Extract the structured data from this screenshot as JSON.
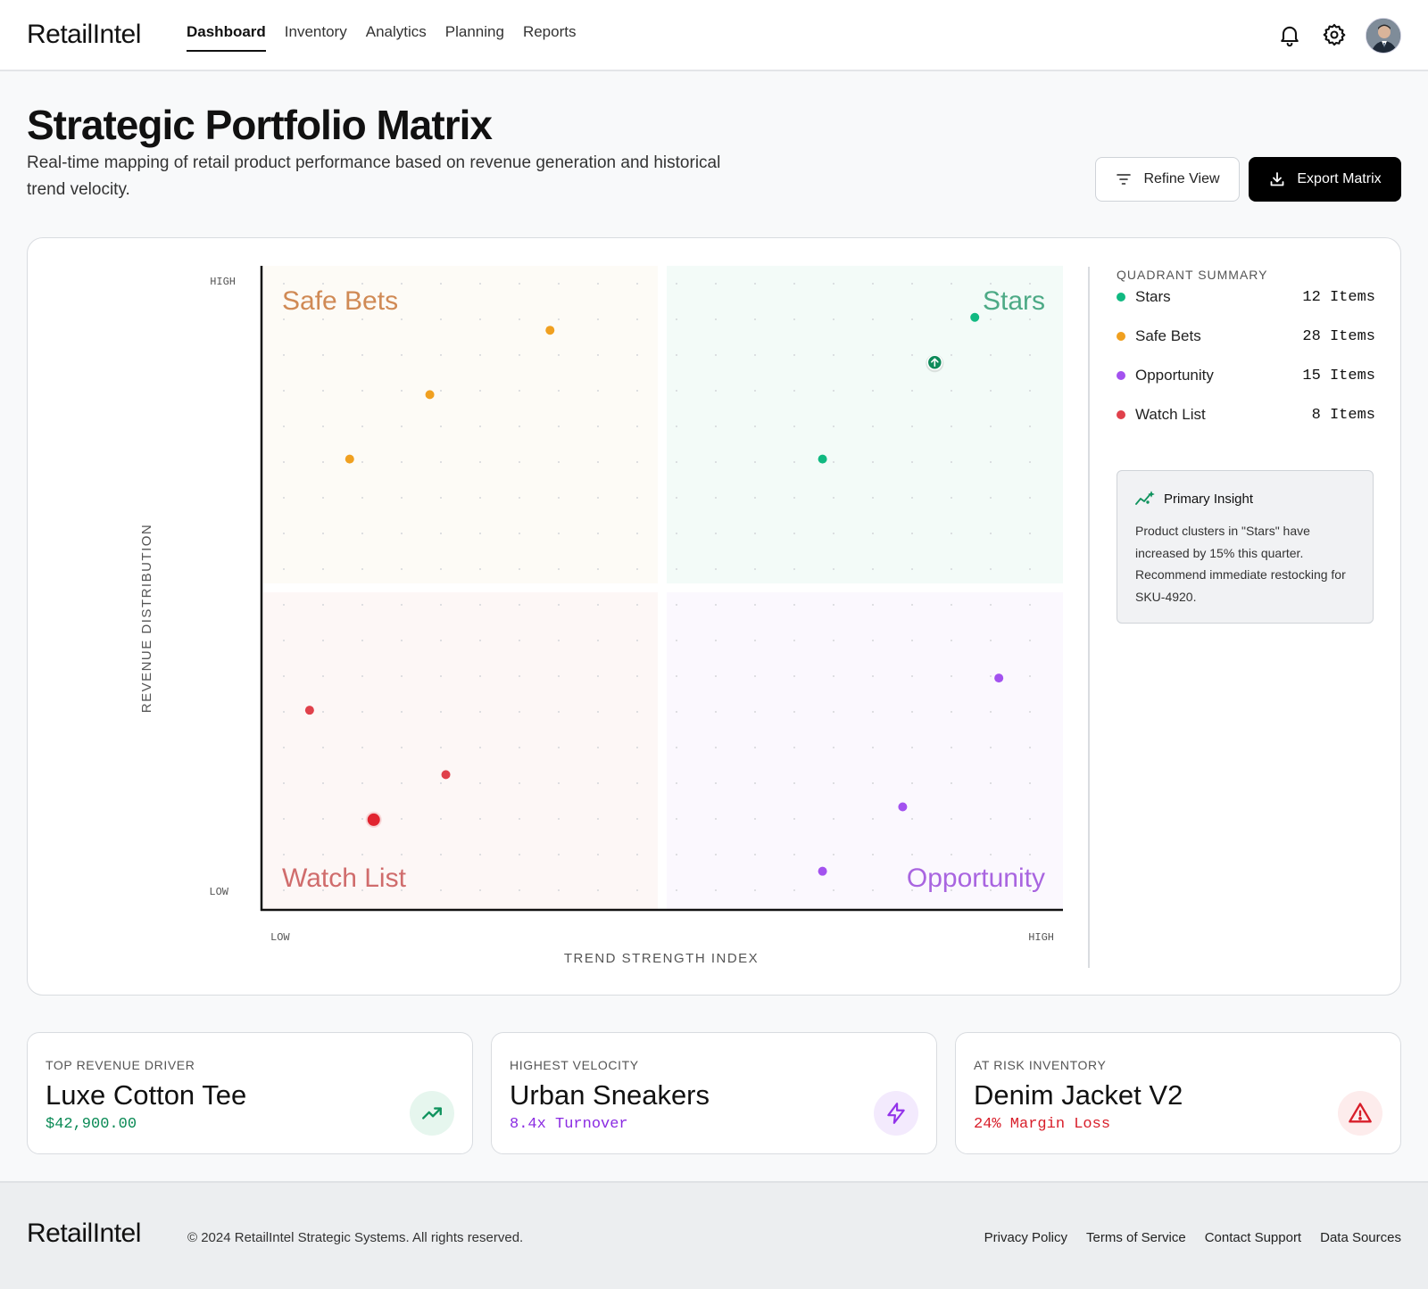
{
  "app": {
    "brand": "RetailIntel"
  },
  "nav": {
    "items": [
      "Dashboard",
      "Inventory",
      "Analytics",
      "Planning",
      "Reports"
    ],
    "active": "Dashboard",
    "icons": [
      "bell-icon",
      "gear-icon"
    ]
  },
  "header": {
    "title": "Strategic Portfolio Matrix",
    "subtitle": "Real-time mapping of retail product performance based on revenue generation and historical trend velocity.",
    "refine_label": "Refine View",
    "export_label": "Export Matrix"
  },
  "chart_data": {
    "type": "scatter",
    "xlabel": "TREND STRENGTH INDEX",
    "ylabel": "REVENUE DISTRIBUTION",
    "x_ticks": [
      "LOW",
      "HIGH"
    ],
    "y_ticks": [
      "HIGH",
      "LOW"
    ],
    "xlim": [
      0,
      100
    ],
    "ylim": [
      0,
      100
    ],
    "grid": "dotted",
    "quadrants": [
      {
        "name": "Safe Bets",
        "position": "top-left",
        "color": "#d08a55",
        "bg": "#fdfbf6"
      },
      {
        "name": "Stars",
        "position": "top-right",
        "color": "#4daa86",
        "bg": "#f3fbf8"
      },
      {
        "name": "Watch List",
        "position": "bottom-left",
        "color": "#d06c6c",
        "bg": "#fdf7f6"
      },
      {
        "name": "Opportunity",
        "position": "bottom-right",
        "color": "#a965e0",
        "bg": "#fbf8fe"
      }
    ],
    "series": [
      {
        "name": "Safe Bets",
        "color": "#f0a020",
        "points": [
          [
            36,
            90
          ],
          [
            21,
            80
          ],
          [
            11,
            70
          ]
        ]
      },
      {
        "name": "Stars",
        "color": "#10b981",
        "points": [
          [
            89,
            92
          ],
          [
            84,
            85
          ],
          [
            70,
            70
          ]
        ]
      },
      {
        "name": "Watch List",
        "color": "#e0414b",
        "points": [
          [
            6,
            31
          ],
          [
            23,
            21
          ],
          [
            14,
            14
          ]
        ]
      },
      {
        "name": "Opportunity",
        "color": "#a352ef",
        "points": [
          [
            92,
            36
          ],
          [
            80,
            16
          ],
          [
            70,
            6
          ]
        ]
      }
    ],
    "highlight_points": [
      {
        "series": "Stars",
        "point": [
          84,
          85
        ],
        "marker": "arrow-up-icon"
      },
      {
        "series": "Watch List",
        "point": [
          14,
          14
        ],
        "marker": "large"
      }
    ]
  },
  "summary": {
    "title": "QUADRANT SUMMARY",
    "items": [
      {
        "label": "Stars",
        "count": "12 Items",
        "color": "#10b981"
      },
      {
        "label": "Safe Bets",
        "count": "28 Items",
        "color": "#f0a020"
      },
      {
        "label": "Opportunity",
        "count": "15 Items",
        "color": "#a352ef"
      },
      {
        "label": "Watch List",
        "count": "8 Items",
        "color": "#e0414b"
      }
    ]
  },
  "insight": {
    "title": "Primary Insight",
    "body": "Product clusters in \"Stars\" have increased by 15% this quarter. Recommend immediate restocking for SKU-4920."
  },
  "kpis": [
    {
      "label": "TOP REVENUE DRIVER",
      "title": "Luxe Cotton Tee",
      "value": "$42,900.00",
      "color": "#0a8a55",
      "icon": "trending-up-icon",
      "icon_bg": "#e6f6ee"
    },
    {
      "label": "HIGHEST VELOCITY",
      "title": "Urban Sneakers",
      "value": "8.4x Turnover",
      "color": "#8a2be2",
      "icon": "lightning-icon",
      "icon_bg": "#f3eafd"
    },
    {
      "label": "AT RISK INVENTORY",
      "title": "Denim Jacket V2",
      "value": "24% Margin Loss",
      "color": "#d81e2a",
      "icon": "warning-icon",
      "icon_bg": "#fdecec"
    }
  ],
  "footer": {
    "brand": "RetailIntel",
    "copyright": "© 2024 RetailIntel Strategic Systems. All rights reserved.",
    "links": [
      "Privacy Policy",
      "Terms of Service",
      "Contact Support",
      "Data Sources"
    ]
  }
}
